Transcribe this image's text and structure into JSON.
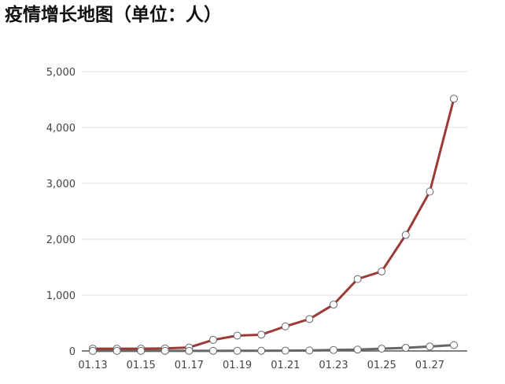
{
  "chart_data": {
    "type": "line",
    "title": "疫情增长地图（单位：人）",
    "categories": [
      "01.13",
      null,
      "01.15",
      null,
      "01.17",
      null,
      "01.19",
      null,
      "01.21",
      null,
      "01.23",
      null,
      "01.25",
      null,
      "01.27",
      null
    ],
    "series": [
      {
        "color": "#9b3a36",
        "values": [
          41,
          41,
          41,
          45,
          62,
          198,
          275,
          291,
          440,
          571,
          830,
          1287,
          1423,
          2077,
          2852,
          4515
        ]
      },
      {
        "color": "#666666",
        "values": [
          1,
          1,
          2,
          2,
          2,
          2,
          3,
          4,
          6,
          9,
          17,
          25,
          41,
          56,
          80,
          106
        ]
      }
    ],
    "ylim": [
      0,
      5000
    ],
    "yticks": [
      0,
      {
        "value": 1000,
        "label": "1,000"
      },
      {
        "value": 2000,
        "label": "2,000"
      },
      {
        "value": 3000,
        "label": "3,000"
      },
      {
        "value": 4000,
        "label": "4,000"
      },
      {
        "value": 5000,
        "label": "5,000"
      }
    ],
    "grid": true
  }
}
